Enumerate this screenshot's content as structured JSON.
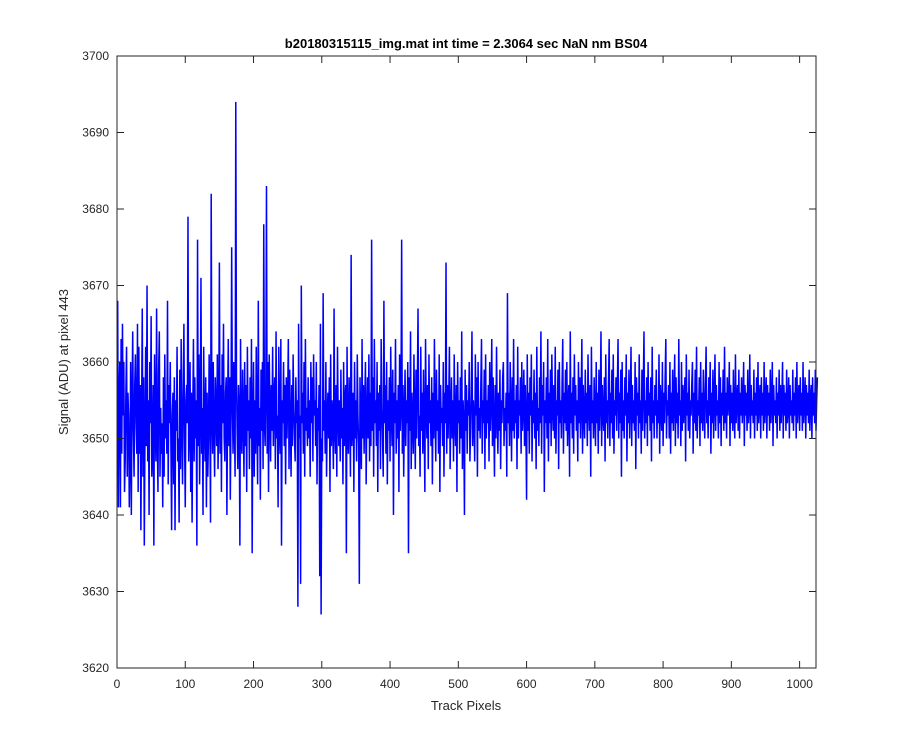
{
  "chart_data": {
    "type": "line",
    "title": "b20180315115_img.mat int time = 2.3064 sec  NaN nm BS04",
    "xlabel": "Track Pixels",
    "ylabel": "Signal (ADU) at pixel 443",
    "xlim": [
      0,
      1024
    ],
    "ylim": [
      3620,
      3700
    ],
    "xticks": [
      0,
      100,
      200,
      300,
      400,
      500,
      600,
      700,
      800,
      900,
      1000
    ],
    "yticks": [
      3620,
      3630,
      3640,
      3650,
      3660,
      3670,
      3680,
      3690,
      3700
    ],
    "grid": false,
    "box": true,
    "series": [
      {
        "color": "#0000ff",
        "x_start": 1,
        "x_step": 1,
        "values": [
          3668,
          3641,
          3655,
          3660,
          3641,
          3663,
          3648,
          3665,
          3653,
          3660,
          3643,
          3647,
          3656,
          3662,
          3645,
          3656,
          3653,
          3641,
          3647,
          3660,
          3640,
          3655,
          3664,
          3651,
          3645,
          3657,
          3661,
          3652,
          3648,
          3665,
          3643,
          3662,
          3648,
          3657,
          3638,
          3653,
          3667,
          3645,
          3658,
          3636,
          3651,
          3662,
          3649,
          3670,
          3647,
          3655,
          3640,
          3660,
          3652,
          3666,
          3645,
          3648,
          3657,
          3636,
          3661,
          3653,
          3647,
          3667,
          3650,
          3643,
          3659,
          3664,
          3645,
          3654,
          3648,
          3652,
          3641,
          3658,
          3645,
          3661,
          3650,
          3655,
          3648,
          3668,
          3644,
          3657,
          3652,
          3660,
          3649,
          3638,
          3653,
          3656,
          3644,
          3658,
          3638,
          3655,
          3651,
          3662,
          3647,
          3650,
          3639,
          3659,
          3646,
          3663,
          3652,
          3644,
          3656,
          3665,
          3650,
          3641,
          3655,
          3657,
          3652,
          3679,
          3647,
          3651,
          3660,
          3643,
          3656,
          3639,
          3653,
          3663,
          3647,
          3658,
          3650,
          3655,
          3636,
          3676,
          3649,
          3661,
          3644,
          3653,
          3671,
          3648,
          3654,
          3640,
          3662,
          3652,
          3647,
          3658,
          3641,
          3656,
          3645,
          3650,
          3661,
          3654,
          3639,
          3682,
          3653,
          3648,
          3660,
          3651,
          3645,
          3658,
          3654,
          3649,
          3661,
          3646,
          3652,
          3673,
          3648,
          3657,
          3643,
          3661,
          3652,
          3665,
          3650,
          3647,
          3656,
          3658,
          3640,
          3654,
          3663,
          3649,
          3658,
          3642,
          3653,
          3675,
          3655,
          3648,
          3660,
          3652,
          3645,
          3694,
          3658,
          3651,
          3646,
          3657,
          3654,
          3636,
          3663,
          3650,
          3648,
          3659,
          3653,
          3645,
          3660,
          3649,
          3657,
          3643,
          3662,
          3651,
          3655,
          3646,
          3658,
          3650,
          3663,
          3635,
          3653,
          3660,
          3645,
          3655,
          3648,
          3662,
          3652,
          3644,
          3668,
          3649,
          3654,
          3642,
          3659,
          3651,
          3660,
          3646,
          3678,
          3652,
          3649,
          3656,
          3683,
          3648,
          3660,
          3643,
          3661,
          3654,
          3647,
          3657,
          3651,
          3662,
          3649,
          3655,
          3658,
          3646,
          3664,
          3650,
          3653,
          3641,
          3662,
          3651,
          3648,
          3663,
          3636,
          3655,
          3652,
          3660,
          3649,
          3657,
          3644,
          3658,
          3650,
          3655,
          3663,
          3646,
          3659,
          3652,
          3645,
          3657,
          3649,
          3661,
          3654,
          3650,
          3647,
          3658,
          3652,
          3655,
          3628,
          3665,
          3650,
          3653,
          3631,
          3670,
          3652,
          3656,
          3648,
          3660,
          3645,
          3663,
          3651,
          3654,
          3649,
          3658,
          3650,
          3655,
          3645,
          3660,
          3652,
          3658,
          3647,
          3661,
          3653,
          3655,
          3649,
          3660,
          3644,
          3654,
          3651,
          3657,
          3632,
          3665,
          3627,
          3650,
          3647,
          3669,
          3651,
          3655,
          3648,
          3660,
          3645,
          3653,
          3656,
          3650,
          3658,
          3643,
          3661,
          3649,
          3655,
          3652,
          3646,
          3667,
          3651,
          3648,
          3657,
          3645,
          3662,
          3653,
          3649,
          3655,
          3647,
          3659,
          3650,
          3654,
          3644,
          3660,
          3649,
          3655,
          3657,
          3635,
          3662,
          3651,
          3648,
          3658,
          3653,
          3645,
          3674,
          3649,
          3652,
          3656,
          3643,
          3660,
          3650,
          3655,
          3647,
          3661,
          3653,
          3649,
          3631,
          3658,
          3652,
          3646,
          3663,
          3650,
          3657,
          3648,
          3655,
          3660,
          3644,
          3653,
          3658,
          3650,
          3661,
          3647,
          3656,
          3649,
          3676,
          3651,
          3658,
          3645,
          3663,
          3652,
          3655,
          3649,
          3660,
          3643,
          3656,
          3651,
          3657,
          3646,
          3663,
          3654,
          3650,
          3645,
          3668,
          3652,
          3657,
          3648,
          3660,
          3644,
          3655,
          3651,
          3658,
          3647,
          3662,
          3653,
          3649,
          3659,
          3640,
          3656,
          3652,
          3663,
          3648,
          3655,
          3650,
          3657,
          3643,
          3661,
          3651,
          3654,
          3676,
          3648,
          3657,
          3645,
          3653,
          3659,
          3649,
          3655,
          3652,
          3660,
          3635,
          3658,
          3651,
          3664,
          3646,
          3656,
          3652,
          3648,
          3661,
          3653,
          3646,
          3659,
          3650,
          3657,
          3667,
          3649,
          3653,
          3645,
          3662,
          3651,
          3656,
          3648,
          3659,
          3652,
          3643,
          3663,
          3654,
          3650,
          3657,
          3646,
          3661,
          3652,
          3655,
          3649,
          3658,
          3644,
          3656,
          3650,
          3663,
          3653,
          3647,
          3659,
          3651,
          3655,
          3648,
          3661,
          3643,
          3657,
          3652,
          3654,
          3649,
          3660,
          3645,
          3656,
          3652,
          3673,
          3648,
          3657,
          3650,
          3655,
          3662,
          3646,
          3653,
          3658,
          3650,
          3655,
          3647,
          3661,
          3652,
          3649,
          3657,
          3643,
          3660,
          3652,
          3655,
          3648,
          3658,
          3650,
          3664,
          3646,
          3655,
          3652,
          3640,
          3659,
          3651,
          3657,
          3648,
          3655,
          3653,
          3660,
          3647,
          3651,
          3656,
          3664,
          3649,
          3655,
          3652,
          3647,
          3661,
          3653,
          3658,
          3645,
          3660,
          3651,
          3654,
          3650,
          3657,
          3663,
          3648,
          3655,
          3652,
          3659,
          3646,
          3661,
          3650,
          3655,
          3652,
          3657,
          3647,
          3660,
          3651,
          3655,
          3663,
          3649,
          3658,
          3652,
          3645,
          3657,
          3650,
          3662,
          3653,
          3648,
          3656,
          3651,
          3659,
          3646,
          3655,
          3652,
          3658,
          3660,
          3649,
          3654,
          3651,
          3656,
          3645,
          3669,
          3652,
          3656,
          3649,
          3660,
          3654,
          3647,
          3658,
          3651,
          3663,
          3650,
          3655,
          3652,
          3657,
          3646,
          3662,
          3650,
          3655,
          3653,
          3658,
          3648,
          3660,
          3651,
          3654,
          3659,
          3649,
          3657,
          3652,
          3642,
          3661,
          3651,
          3656,
          3648,
          3658,
          3653,
          3661,
          3647,
          3655,
          3652,
          3659,
          3650,
          3656,
          3646,
          3662,
          3651,
          3654,
          3649,
          3658,
          3652,
          3664,
          3648,
          3657,
          3653,
          3660,
          3643,
          3655,
          3652,
          3658,
          3650,
          3663,
          3647,
          3656,
          3652,
          3659,
          3649,
          3661,
          3654,
          3651,
          3657,
          3650,
          3662,
          3648,
          3655,
          3653,
          3659,
          3646,
          3660,
          3652,
          3655,
          3650,
          3657,
          3663,
          3648,
          3656,
          3652,
          3659,
          3651,
          3660,
          3649,
          3655,
          3657,
          3645,
          3664,
          3652,
          3656,
          3650,
          3658,
          3648,
          3661,
          3653,
          3657,
          3651,
          3655,
          3647,
          3660,
          3652,
          3658,
          3650,
          3655,
          3663,
          3648,
          3657,
          3653,
          3650,
          3659,
          3652,
          3656,
          3649,
          3661,
          3654,
          3651,
          3657,
          3645,
          3662,
          3652,
          3655,
          3650,
          3658,
          3653,
          3649,
          3660,
          3652,
          3656,
          3648,
          3659,
          3651,
          3655,
          3664,
          3649,
          3657,
          3653,
          3651,
          3658,
          3647,
          3661,
          3652,
          3655,
          3650,
          3657,
          3663,
          3649,
          3656,
          3652,
          3659,
          3650,
          3661,
          3648,
          3655,
          3653,
          3658,
          3651,
          3657,
          3663,
          3650,
          3656,
          3652,
          3659,
          3645,
          3660,
          3651,
          3655,
          3650,
          3658,
          3653,
          3661,
          3647,
          3656,
          3652,
          3659,
          3650,
          3655,
          3662,
          3649,
          3657,
          3652,
          3655,
          3651,
          3660,
          3646,
          3658,
          3653,
          3656,
          3650,
          3661,
          3652,
          3655,
          3648,
          3659,
          3651,
          3657,
          3664,
          3650,
          3655,
          3652,
          3658,
          3649,
          3660,
          3653,
          3656,
          3651,
          3658,
          3647,
          3662,
          3652,
          3655,
          3650,
          3657,
          3653,
          3659,
          3650,
          3655,
          3652,
          3661,
          3648,
          3657,
          3654,
          3651,
          3660,
          3649,
          3656,
          3652,
          3658,
          3663,
          3650,
          3655,
          3653,
          3657,
          3650,
          3660,
          3648,
          3656,
          3652,
          3659,
          3651,
          3655,
          3661,
          3649,
          3658,
          3652,
          3656,
          3650,
          3663,
          3653,
          3655,
          3649,
          3660,
          3651,
          3657,
          3652,
          3655,
          3658,
          3647,
          3661,
          3653,
          3656,
          3651,
          3659,
          3650,
          3655,
          3653,
          3657,
          3660,
          3648,
          3656,
          3652,
          3659,
          3651,
          3662,
          3650,
          3655,
          3653,
          3658,
          3649,
          3660,
          3652,
          3656,
          3651,
          3659,
          3654,
          3650,
          3657,
          3662,
          3652,
          3655,
          3650,
          3658,
          3653,
          3660,
          3648,
          3656,
          3652,
          3659,
          3650,
          3655,
          3661,
          3651,
          3657,
          3653,
          3655,
          3650,
          3660,
          3652,
          3658,
          3649,
          3656,
          3653,
          3659,
          3651,
          3662,
          3652,
          3656,
          3650,
          3658,
          3653,
          3655,
          3660,
          3649,
          3657,
          3652,
          3656,
          3651,
          3659,
          3653,
          3650,
          3661,
          3652,
          3655,
          3657,
          3651,
          3659,
          3650,
          3656,
          3653,
          3658,
          3652,
          3655,
          3660,
          3649,
          3657,
          3653,
          3656,
          3651,
          3659,
          3652,
          3654,
          3661,
          3650,
          3657,
          3653,
          3655,
          3652,
          3659,
          3650,
          3656,
          3653,
          3658,
          3651,
          3660,
          3652,
          3655,
          3657,
          3650,
          3658,
          3653,
          3656,
          3651,
          3660,
          3652,
          3655,
          3658,
          3650,
          3657,
          3653,
          3656,
          3651,
          3659,
          3652,
          3655,
          3660,
          3649,
          3657,
          3653,
          3655,
          3652,
          3658,
          3650,
          3656,
          3653,
          3659,
          3651,
          3657,
          3652,
          3655,
          3660,
          3650,
          3657,
          3653,
          3656,
          3651,
          3659,
          3652,
          3654,
          3658,
          3650,
          3657,
          3653,
          3655,
          3652,
          3659,
          3651,
          3656,
          3653,
          3658,
          3650,
          3660,
          3652,
          3655,
          3657,
          3651,
          3658,
          3653,
          3656,
          3651,
          3660,
          3652,
          3655,
          3658,
          3650,
          3657,
          3653,
          3656,
          3652,
          3659,
          3651,
          3655,
          3657,
          3650,
          3658,
          3653,
          3656,
          3652,
          3659,
          3651,
          3655,
          3658
        ]
      }
    ]
  }
}
